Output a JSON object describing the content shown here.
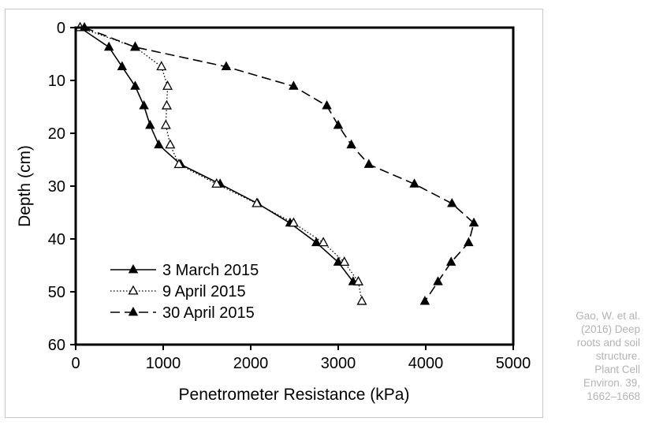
{
  "chart_data": {
    "type": "line",
    "title": "",
    "xlabel": "Penetrometer Resistance (kPa)",
    "ylabel": "Depth (cm)",
    "xlim": [
      0,
      5000
    ],
    "ylim": [
      0,
      60
    ],
    "y_inverted": true,
    "x_ticks": [
      "0",
      "1000",
      "2000",
      "3000",
      "4000",
      "5000"
    ],
    "y_ticks": [
      "0",
      "10",
      "20",
      "30",
      "40",
      "50",
      "60"
    ],
    "grid": false,
    "legend_position": "bottom-left",
    "series": [
      {
        "name": " 3 March 2015",
        "line_style": "solid",
        "marker": "filled-triangle",
        "color": "#000000",
        "points": [
          {
            "x": 50,
            "y": 0
          },
          {
            "x": 380,
            "y": 3.7
          },
          {
            "x": 530,
            "y": 7.4
          },
          {
            "x": 680,
            "y": 11.1
          },
          {
            "x": 780,
            "y": 14.8
          },
          {
            "x": 850,
            "y": 18.5
          },
          {
            "x": 950,
            "y": 22.2
          },
          {
            "x": 1200,
            "y": 25.9
          },
          {
            "x": 1650,
            "y": 29.6
          },
          {
            "x": 2080,
            "y": 33.3
          },
          {
            "x": 2450,
            "y": 37.0
          },
          {
            "x": 2750,
            "y": 40.7
          },
          {
            "x": 3000,
            "y": 44.4
          },
          {
            "x": 3170,
            "y": 48.1
          }
        ]
      },
      {
        "name": "9 April 2015",
        "line_style": "dotted",
        "marker": "open-triangle",
        "color": "#000000",
        "points": [
          {
            "x": 50,
            "y": 0
          },
          {
            "x": 680,
            "y": 3.7
          },
          {
            "x": 980,
            "y": 7.4
          },
          {
            "x": 1050,
            "y": 11.1
          },
          {
            "x": 1040,
            "y": 14.8
          },
          {
            "x": 1030,
            "y": 18.5
          },
          {
            "x": 1080,
            "y": 22.2
          },
          {
            "x": 1180,
            "y": 25.9
          },
          {
            "x": 1610,
            "y": 29.6
          },
          {
            "x": 2070,
            "y": 33.3
          },
          {
            "x": 2490,
            "y": 37.0
          },
          {
            "x": 2830,
            "y": 40.7
          },
          {
            "x": 3070,
            "y": 44.4
          },
          {
            "x": 3230,
            "y": 48.1
          },
          {
            "x": 3270,
            "y": 51.8
          }
        ]
      },
      {
        "name": "30 April 2015",
        "line_style": "dashed",
        "marker": "filled-triangle",
        "color": "#000000",
        "points": [
          {
            "x": 100,
            "y": 0
          },
          {
            "x": 680,
            "y": 3.7
          },
          {
            "x": 1720,
            "y": 7.4
          },
          {
            "x": 2490,
            "y": 11.1
          },
          {
            "x": 2870,
            "y": 14.8
          },
          {
            "x": 3000,
            "y": 18.5
          },
          {
            "x": 3150,
            "y": 22.2
          },
          {
            "x": 3350,
            "y": 25.9
          },
          {
            "x": 3870,
            "y": 29.6
          },
          {
            "x": 4300,
            "y": 33.3
          },
          {
            "x": 4550,
            "y": 37.0
          },
          {
            "x": 4490,
            "y": 40.7
          },
          {
            "x": 4290,
            "y": 44.4
          },
          {
            "x": 4140,
            "y": 48.1
          },
          {
            "x": 3990,
            "y": 51.8
          }
        ]
      }
    ]
  },
  "citation": {
    "lines": [
      "Gao, W. et al.",
      "(2016) Deep",
      "roots and soil",
      "structure.",
      "Plant Cell",
      "Environ. 39,",
      "1662–1668"
    ]
  }
}
